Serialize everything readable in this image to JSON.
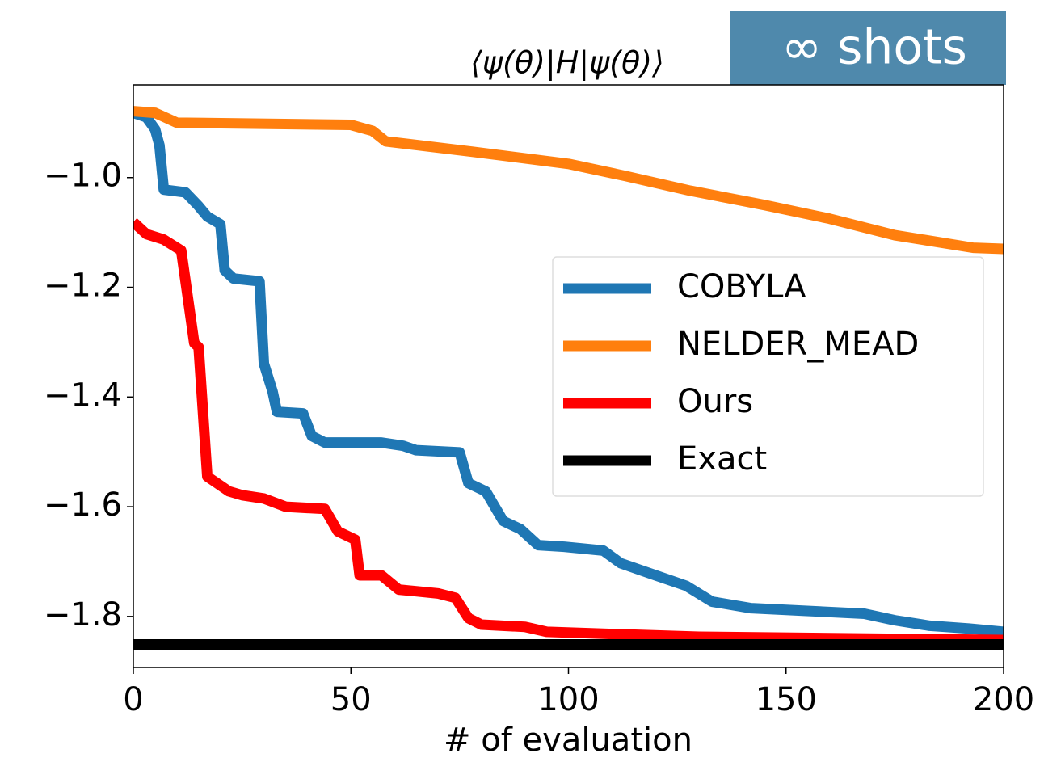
{
  "chart_data": {
    "type": "line",
    "title": "⟨ψ(θ)|H|ψ(θ)⟩",
    "badge": "∞ shots",
    "x_label": "# of evaluation",
    "xlim": [
      0,
      200
    ],
    "xticks": [
      0,
      50,
      100,
      150,
      200
    ],
    "ylim": [
      -1.893,
      -0.831
    ],
    "yticks": [
      {
        "value": -1.8,
        "label": "−1.8"
      },
      {
        "value": -1.6,
        "label": "−1.6"
      },
      {
        "value": -1.4,
        "label": "−1.4"
      },
      {
        "value": -1.2,
        "label": "−1.2"
      },
      {
        "value": -1.0,
        "label": "−1.0"
      }
    ],
    "legend": "right",
    "series": [
      {
        "name": "COBYLA",
        "color": "#1f77b4",
        "x": [
          0,
          3,
          5,
          6,
          7,
          12,
          15,
          17,
          20,
          21,
          23,
          29,
          30,
          32,
          33,
          39,
          41,
          44,
          57,
          62,
          65,
          75,
          77,
          81,
          85,
          89,
          93,
          99,
          108,
          112,
          120,
          127,
          133,
          142,
          168,
          175,
          183,
          192,
          200
        ],
        "values": [
          -0.882,
          -0.89,
          -0.912,
          -0.941,
          -1.022,
          -1.027,
          -1.052,
          -1.071,
          -1.085,
          -1.169,
          -1.184,
          -1.189,
          -1.339,
          -1.39,
          -1.427,
          -1.43,
          -1.471,
          -1.483,
          -1.483,
          -1.489,
          -1.497,
          -1.501,
          -1.557,
          -1.572,
          -1.626,
          -1.641,
          -1.67,
          -1.673,
          -1.68,
          -1.703,
          -1.725,
          -1.744,
          -1.773,
          -1.785,
          -1.795,
          -1.807,
          -1.817,
          -1.822,
          -1.828
        ]
      },
      {
        "name": "NELDER_MEAD",
        "color": "#ff7f0e",
        "x": [
          0,
          5,
          10,
          50,
          55,
          58,
          78,
          100,
          113,
          128,
          145,
          160,
          175,
          193,
          200
        ],
        "values": [
          -0.879,
          -0.882,
          -0.9,
          -0.904,
          -0.915,
          -0.934,
          -0.953,
          -0.975,
          -0.997,
          -1.024,
          -1.05,
          -1.075,
          -1.105,
          -1.128,
          -1.13
        ]
      },
      {
        "name": "Ours",
        "color": "#ff0000",
        "x": [
          0,
          3,
          7,
          11,
          14,
          15,
          17,
          22,
          25,
          30,
          35,
          44,
          47,
          51,
          52,
          57,
          61,
          70,
          74,
          77,
          80,
          90,
          95,
          110,
          130,
          200
        ],
        "values": [
          -1.081,
          -1.103,
          -1.113,
          -1.133,
          -1.302,
          -1.309,
          -1.545,
          -1.572,
          -1.579,
          -1.585,
          -1.6,
          -1.604,
          -1.645,
          -1.66,
          -1.725,
          -1.725,
          -1.751,
          -1.758,
          -1.766,
          -1.803,
          -1.815,
          -1.819,
          -1.828,
          -1.832,
          -1.837,
          -1.843
        ]
      },
      {
        "name": "Exact",
        "color": "#000000",
        "x": [
          0,
          200
        ],
        "values": [
          -1.851,
          -1.851
        ]
      }
    ]
  }
}
